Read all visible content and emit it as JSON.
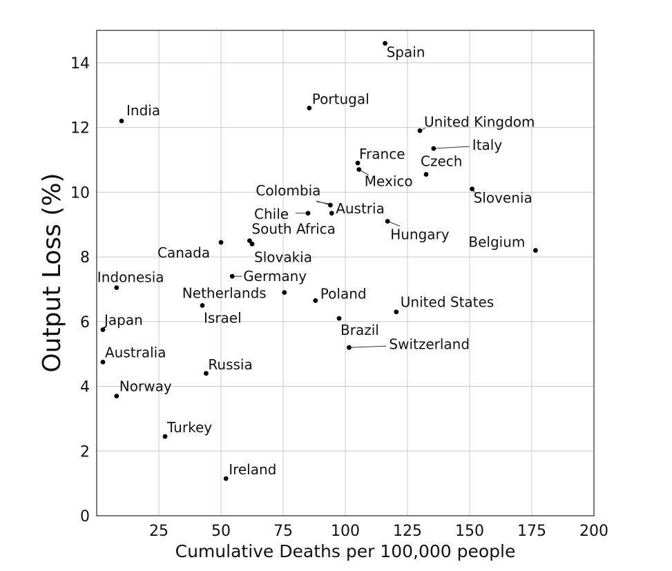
{
  "chart_data": {
    "type": "scatter",
    "title": "",
    "xlabel": "Cumulative Deaths per 100,000 people",
    "ylabel": "Output Loss (%)",
    "xlim": [
      0,
      200
    ],
    "ylim": [
      0,
      15
    ],
    "xticks": [
      25,
      50,
      75,
      100,
      125,
      150,
      175,
      200
    ],
    "yticks": [
      0,
      2,
      4,
      6,
      8,
      10,
      12,
      14
    ],
    "grid": true,
    "marker_color": "#000000",
    "points": [
      {
        "label": "Spain",
        "x": 116,
        "y": 14.6
      },
      {
        "label": "Portugal",
        "x": 85.5,
        "y": 12.6
      },
      {
        "label": "India",
        "x": 10,
        "y": 12.2
      },
      {
        "label": "United Kingdom",
        "x": 130,
        "y": 11.9
      },
      {
        "label": "Italy",
        "x": 135.5,
        "y": 11.35
      },
      {
        "label": "France",
        "x": 105,
        "y": 10.9
      },
      {
        "label": "Mexico",
        "x": 105.5,
        "y": 10.7
      },
      {
        "label": "Czech",
        "x": 132.5,
        "y": 10.55
      },
      {
        "label": "Slovenia",
        "x": 151,
        "y": 10.1
      },
      {
        "label": "Colombia",
        "x": 94,
        "y": 9.6
      },
      {
        "label": "Austria",
        "x": 94.5,
        "y": 9.35
      },
      {
        "label": "Chile",
        "x": 85,
        "y": 9.35
      },
      {
        "label": "Hungary",
        "x": 117,
        "y": 9.1
      },
      {
        "label": "South Africa",
        "x": 61.5,
        "y": 8.5
      },
      {
        "label": "Slovakia",
        "x": 62.5,
        "y": 8.4
      },
      {
        "label": "Canada",
        "x": 50,
        "y": 8.45
      },
      {
        "label": "Belgium",
        "x": 176.5,
        "y": 8.2
      },
      {
        "label": "Germany",
        "x": 54.5,
        "y": 7.4
      },
      {
        "label": "Indonesia",
        "x": 8,
        "y": 7.05
      },
      {
        "label": "Netherlands",
        "x": 75.5,
        "y": 6.9
      },
      {
        "label": "Poland",
        "x": 88,
        "y": 6.65
      },
      {
        "label": "Israel",
        "x": 42.5,
        "y": 6.5
      },
      {
        "label": "United States",
        "x": 120.5,
        "y": 6.3
      },
      {
        "label": "Brazil",
        "x": 97.5,
        "y": 6.1
      },
      {
        "label": "Japan",
        "x": 2.5,
        "y": 5.75
      },
      {
        "label": "Switzerland",
        "x": 101.5,
        "y": 5.2
      },
      {
        "label": "Australia",
        "x": 2.5,
        "y": 4.75
      },
      {
        "label": "Russia",
        "x": 44,
        "y": 4.4
      },
      {
        "label": "Norway",
        "x": 8,
        "y": 3.7
      },
      {
        "label": "Turkey",
        "x": 27.5,
        "y": 2.45
      },
      {
        "label": "Ireland",
        "x": 52,
        "y": 1.15
      }
    ]
  }
}
